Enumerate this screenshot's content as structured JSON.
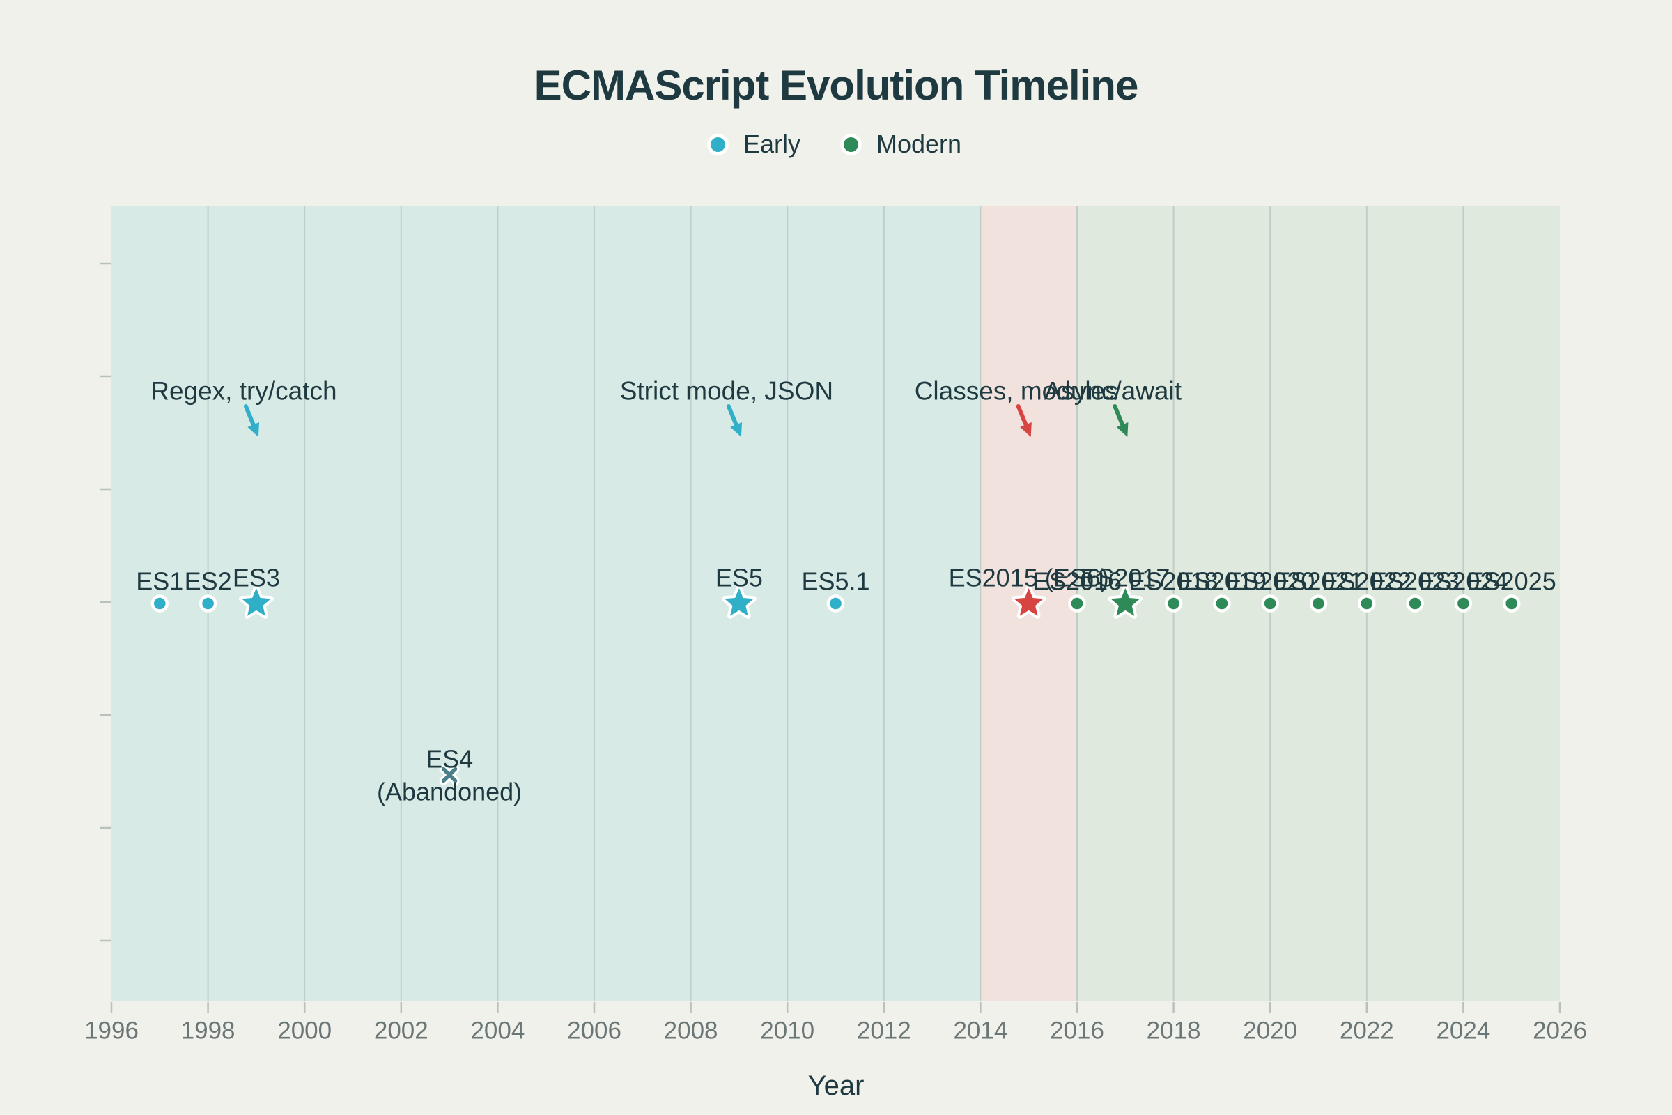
{
  "title": "ECMAScript Evolution Timeline",
  "legend": {
    "items": [
      {
        "label": "Early",
        "era": "early"
      },
      {
        "label": "Modern",
        "era": "modern"
      }
    ]
  },
  "colors": {
    "background": "#f0f1ea",
    "band_early": "#d8eae6",
    "band_transition": "#f2e2de",
    "band_modern": "#dfe9de",
    "gridline": "#c0cdc8",
    "axis_tick": "#b9c1bd",
    "text_dark": "#1e3a40",
    "text_tick": "#6b7677",
    "early": "#2fb0c8",
    "modern": "#2e8b57",
    "highlight": "#d64541",
    "abandoned": "#4a8089",
    "marker_outline": "#ffffff"
  },
  "chart_data": {
    "type": "scatter",
    "title": "ECMAScript Evolution Timeline",
    "xlabel": "Year",
    "ylabel": "",
    "x_range": [
      1996,
      2026
    ],
    "x_ticks": [
      1996,
      1998,
      2000,
      2002,
      2004,
      2006,
      2008,
      2010,
      2012,
      2014,
      2016,
      2018,
      2020,
      2022,
      2024,
      2026
    ],
    "grid": "vertical-only",
    "legend_position": "top-center",
    "bands": [
      {
        "name": "early",
        "from": 1996,
        "to": 2014
      },
      {
        "name": "transition",
        "from": 2014,
        "to": 2016
      },
      {
        "name": "modern",
        "from": 2016,
        "to": 2026
      }
    ],
    "points": [
      {
        "label": "ES1",
        "year": 1997,
        "marker": "circle",
        "era": "early"
      },
      {
        "label": "ES2",
        "year": 1998,
        "marker": "circle",
        "era": "early"
      },
      {
        "label": "ES3",
        "year": 1999,
        "marker": "star",
        "era": "early"
      },
      {
        "label": "ES4",
        "sublabel": "(Abandoned)",
        "year": 2003,
        "marker": "x",
        "era": "abandoned",
        "row": "abandoned"
      },
      {
        "label": "ES5",
        "year": 2009,
        "marker": "star",
        "era": "early"
      },
      {
        "label": "ES5.1",
        "year": 2011,
        "marker": "circle",
        "era": "early"
      },
      {
        "label": "ES2015 (ES6)",
        "year": 2015,
        "marker": "star",
        "era": "highlight"
      },
      {
        "label": "ES2016",
        "year": 2016,
        "marker": "circle",
        "era": "modern"
      },
      {
        "label": "ES2017",
        "year": 2017,
        "marker": "star",
        "era": "modern"
      },
      {
        "label": "ES2018",
        "year": 2018,
        "marker": "circle",
        "era": "modern"
      },
      {
        "label": "ES2019",
        "year": 2019,
        "marker": "circle",
        "era": "modern"
      },
      {
        "label": "ES2020",
        "year": 2020,
        "marker": "circle",
        "era": "modern"
      },
      {
        "label": "ES2021",
        "year": 2021,
        "marker": "circle",
        "era": "modern"
      },
      {
        "label": "ES2022",
        "year": 2022,
        "marker": "circle",
        "era": "modern"
      },
      {
        "label": "ES2023",
        "year": 2023,
        "marker": "circle",
        "era": "modern"
      },
      {
        "label": "ES2024",
        "year": 2024,
        "marker": "circle",
        "era": "modern"
      },
      {
        "label": "ES2025",
        "year": 2025,
        "marker": "circle",
        "era": "modern"
      }
    ],
    "annotations": [
      {
        "text": "Regex, try/catch",
        "target_year": 1999,
        "era": "early"
      },
      {
        "text": "Strict mode, JSON",
        "target_year": 2009,
        "era": "early"
      },
      {
        "text": "Classes, modules",
        "target_year": 2015,
        "era": "highlight"
      },
      {
        "text": "Async/await",
        "target_year": 2017,
        "era": "modern"
      }
    ]
  }
}
